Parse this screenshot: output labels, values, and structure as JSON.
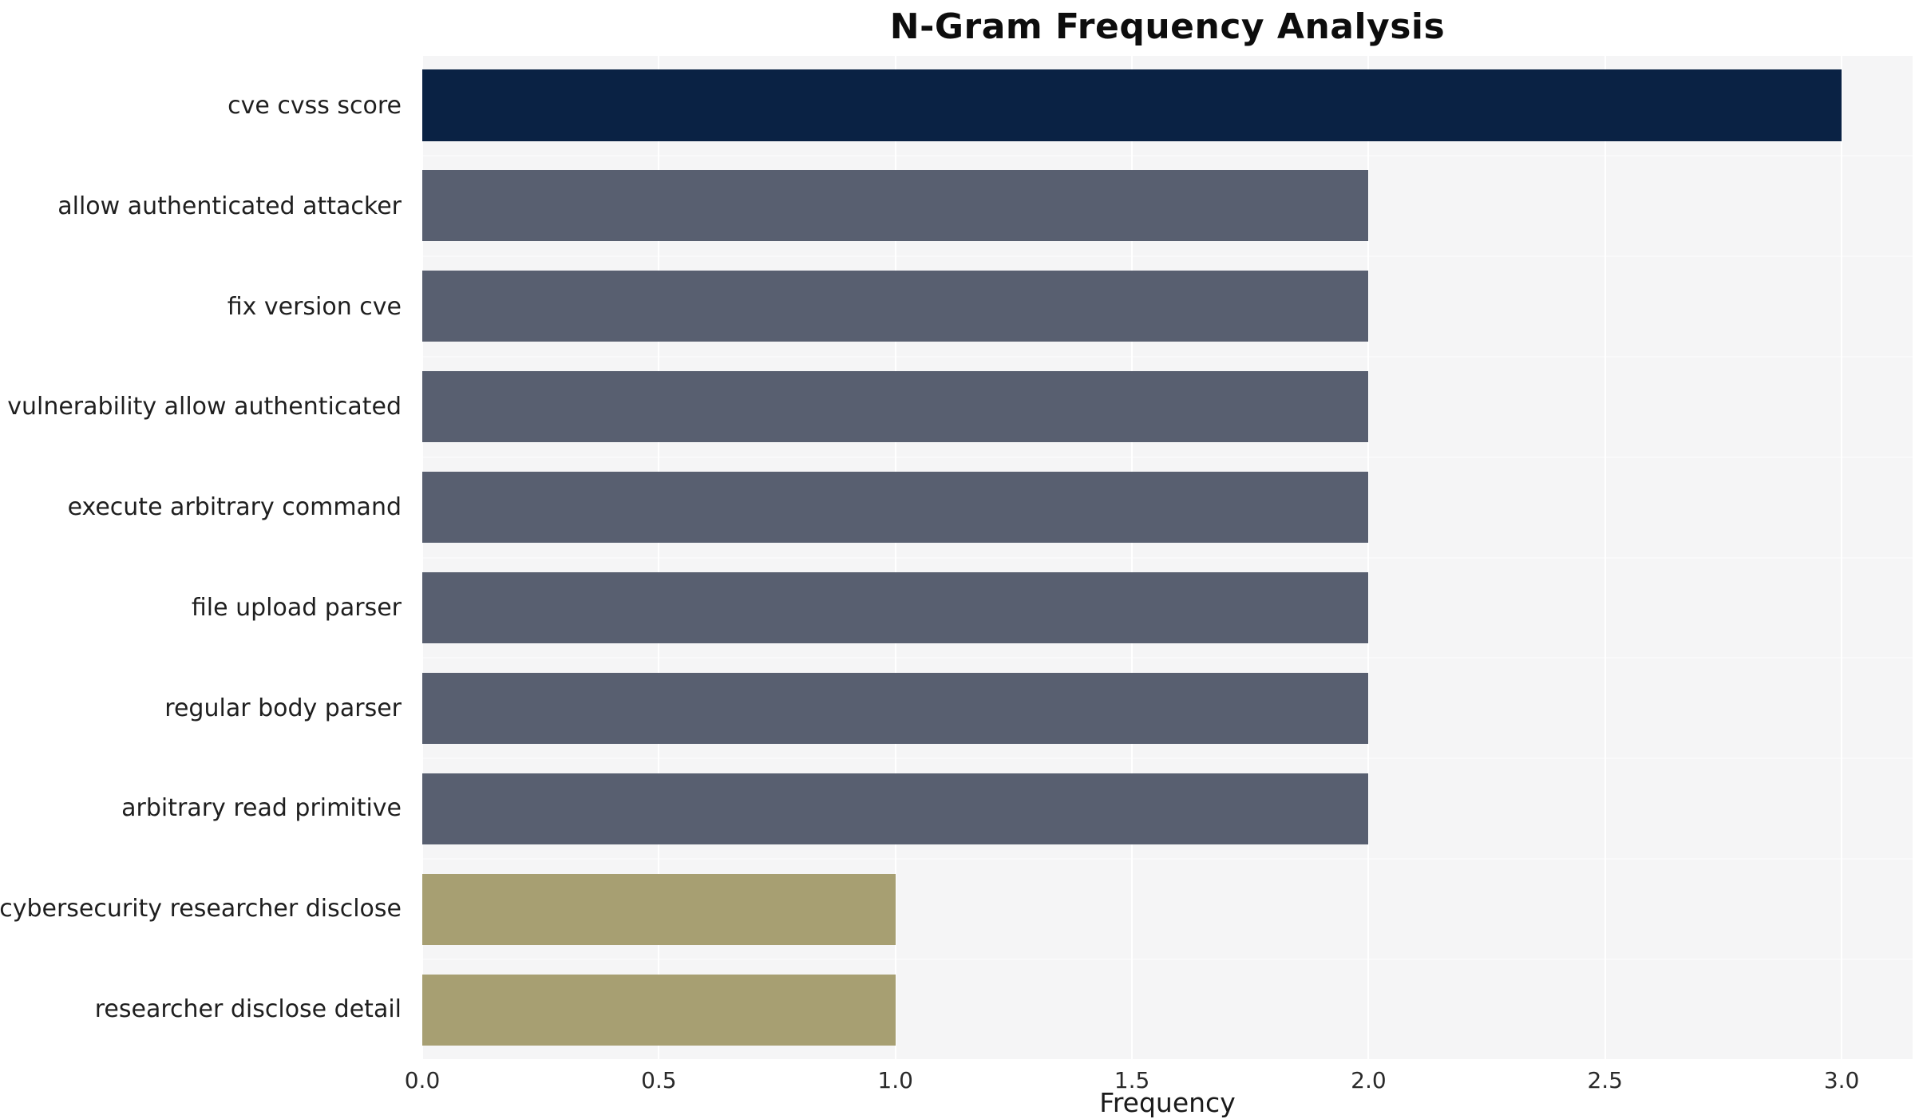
{
  "chart_data": {
    "type": "bar",
    "orientation": "horizontal",
    "title": "N-Gram Frequency Analysis",
    "xlabel": "Frequency",
    "ylabel": "",
    "categories": [
      "cve cvss score",
      "allow authenticated attacker",
      "fix version cve",
      "vulnerability allow authenticated",
      "execute arbitrary command",
      "file upload parser",
      "regular body parser",
      "arbitrary read primitive",
      "cybersecurity researcher disclose",
      "researcher disclose detail"
    ],
    "values": [
      3,
      2,
      2,
      2,
      2,
      2,
      2,
      2,
      1,
      1
    ],
    "bar_colors": [
      "#0a2244",
      "#585f70",
      "#585f70",
      "#585f70",
      "#585f70",
      "#585f70",
      "#585f70",
      "#585f70",
      "#a79f72",
      "#a79f72"
    ],
    "xlim": [
      0,
      3.15
    ],
    "xticks": [
      0,
      0.5,
      1,
      1.5,
      2,
      2.5,
      3
    ],
    "xtick_labels": [
      "0.0",
      "0.5",
      "1.0",
      "1.5",
      "2.0",
      "2.5",
      "3.0"
    ],
    "grid": true,
    "plot_background": "#f5f5f6",
    "legend": "none"
  }
}
